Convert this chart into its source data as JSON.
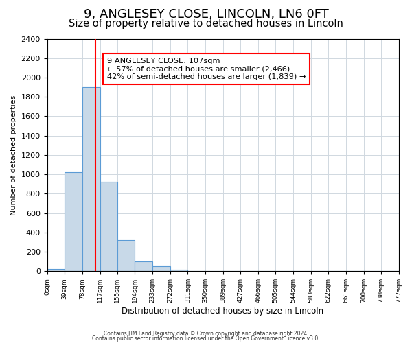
{
  "title": "9, ANGLESEY CLOSE, LINCOLN, LN6 0FT",
  "subtitle": "Size of property relative to detached houses in Lincoln",
  "bar_values": [
    25,
    1025,
    1900,
    920,
    320,
    105,
    50,
    20,
    5,
    0,
    0,
    0,
    0,
    0,
    0,
    0,
    0,
    0,
    0,
    0
  ],
  "bin_edges": [
    0,
    39,
    78,
    117,
    155,
    194,
    233,
    272,
    311,
    350,
    389,
    427,
    466,
    505,
    544,
    583,
    622,
    661,
    700,
    738,
    777
  ],
  "bin_labels": [
    "0sqm",
    "39sqm",
    "78sqm",
    "117sqm",
    "155sqm",
    "194sqm",
    "233sqm",
    "272sqm",
    "311sqm",
    "350sqm",
    "389sqm",
    "427sqm",
    "466sqm",
    "505sqm",
    "544sqm",
    "583sqm",
    "622sqm",
    "661sqm",
    "700sqm",
    "738sqm",
    "777sqm"
  ],
  "bar_color": "#c8d9e8",
  "bar_edge_color": "#5b9bd5",
  "vline_x": 107,
  "vline_color": "red",
  "ylabel": "Number of detached properties",
  "xlabel": "Distribution of detached houses by size in Lincoln",
  "ylim": [
    0,
    2400
  ],
  "yticks": [
    0,
    200,
    400,
    600,
    800,
    1000,
    1200,
    1400,
    1600,
    1800,
    2000,
    2200,
    2400
  ],
  "annotation_title": "9 ANGLESEY CLOSE: 107sqm",
  "annotation_line1": "← 57% of detached houses are smaller (2,466)",
  "annotation_line2": "42% of semi-detached houses are larger (1,839) →",
  "footer1": "Contains HM Land Registry data © Crown copyright and database right 2024.",
  "footer2": "Contains public sector information licensed under the Open Government Licence v3.0.",
  "title_fontsize": 13,
  "subtitle_fontsize": 10.5,
  "background_color": "#ffffff",
  "grid_color": "#d0d8e0"
}
